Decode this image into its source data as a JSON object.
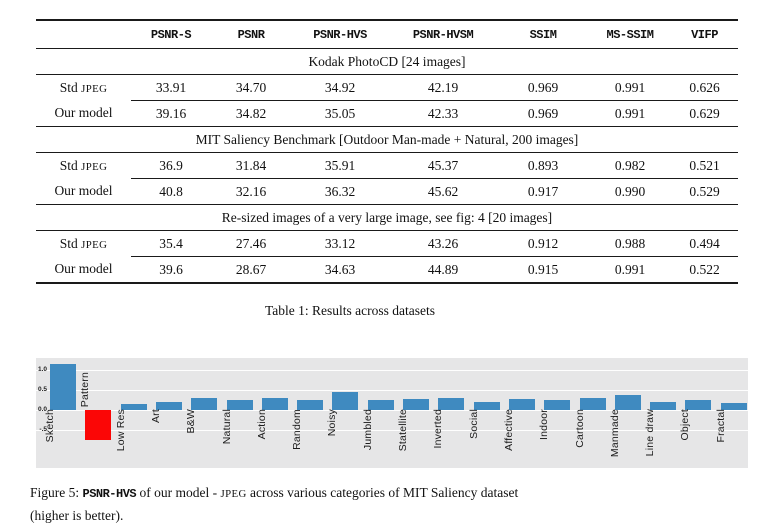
{
  "table": {
    "caption": "Table 1: Results across datasets",
    "columns": [
      "",
      "PSNR-S",
      "PSNR",
      "PSNR-HVS",
      "PSNR-HVSM",
      "SSIM",
      "MS-SSIM",
      "VIFP"
    ],
    "smallcaps_token": "JPEG",
    "sections": [
      {
        "title": "Kodak PhotoCD [24 images]",
        "rows": [
          {
            "label": "Std JPEG",
            "values": [
              "33.91",
              "34.70",
              "34.92",
              "42.19",
              "0.969",
              "0.991",
              "0.626"
            ]
          },
          {
            "label": "Our model",
            "values": [
              "39.16",
              "34.82",
              "35.05",
              "42.33",
              "0.969",
              "0.991",
              "0.629"
            ]
          }
        ]
      },
      {
        "title": "MIT Saliency Benchmark [Outdoor Man-made + Natural, 200 images]",
        "rows": [
          {
            "label": "Std JPEG",
            "values": [
              "36.9",
              "31.84",
              "35.91",
              "45.37",
              "0.893",
              "0.982",
              "0.521"
            ]
          },
          {
            "label": "Our model",
            "values": [
              "40.8",
              "32.16",
              "36.32",
              "45.62",
              "0.917",
              "0.990",
              "0.529"
            ]
          }
        ]
      },
      {
        "title": "Re-sized images of a very large image, see fig: 4 [20 images]",
        "rows": [
          {
            "label": "Std JPEG",
            "values": [
              "35.4",
              "27.46",
              "33.12",
              "43.26",
              "0.912",
              "0.988",
              "0.494"
            ]
          },
          {
            "label": "Our model",
            "values": [
              "39.6",
              "28.67",
              "34.63",
              "44.89",
              "0.915",
              "0.991",
              "0.522"
            ]
          }
        ]
      }
    ]
  },
  "chart_data": {
    "type": "bar",
    "categories": [
      "Sketch",
      "Pattern",
      "Low Res",
      "Art",
      "B&W",
      "Natural",
      "Action",
      "Random",
      "Noisy",
      "Jumbled",
      "Statellite",
      "Inverted",
      "Social",
      "Affective",
      "Indoor",
      "Cartoon",
      "Manmade",
      "Line draw",
      "Object",
      "Fractal"
    ],
    "values": [
      1.15,
      -0.75,
      0.16,
      0.21,
      0.29,
      0.25,
      0.31,
      0.26,
      0.46,
      0.26,
      0.28,
      0.3,
      0.21,
      0.28,
      0.24,
      0.3,
      0.37,
      0.21,
      0.26,
      0.17
    ],
    "yticks": [
      "1.0",
      "0.5",
      "0.0",
      "-.5"
    ],
    "ytick_values": [
      1.0,
      0.5,
      0.0,
      -0.5
    ],
    "ylim": [
      -0.9,
      1.3
    ],
    "bar_color": "#3f8ac0",
    "negative_color": "#fb0606",
    "panel_bg": "#e6e6e7",
    "grid": true,
    "legend": "none",
    "title": "",
    "xlabel": "",
    "ylabel": ""
  },
  "figure": {
    "caption_line1_segments": [
      {
        "text": "Figure 5: ",
        "style": "serif"
      },
      {
        "text": "PSNR-HVS",
        "style": "mono"
      },
      {
        "text": " of our model - ",
        "style": "serif"
      },
      {
        "text": "JPEG",
        "style": "smallcaps"
      },
      {
        "text": " across various categories of MIT Saliency dataset",
        "style": "serif"
      }
    ],
    "caption_line2": "(higher is better)."
  }
}
